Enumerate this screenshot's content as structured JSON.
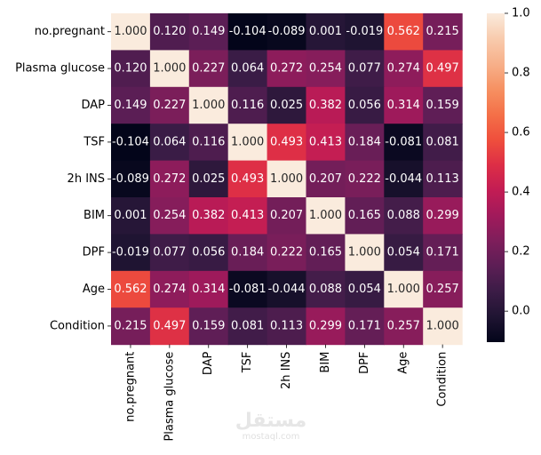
{
  "chart_data": {
    "type": "heatmap",
    "title": "",
    "xlabel": "",
    "ylabel": "",
    "row_labels": [
      "no.pregnant",
      "Plasma glucose",
      "DAP",
      "TSF",
      "2h INS",
      "BIM",
      "DPF",
      "Age",
      "Condition"
    ],
    "col_labels": [
      "no.pregnant",
      "Plasma glucose",
      "DAP",
      "TSF",
      "2h INS",
      "BIM",
      "DPF",
      "Age",
      "Condition"
    ],
    "values": [
      [
        1.0,
        0.12,
        0.149,
        -0.104,
        -0.089,
        0.001,
        -0.019,
        0.562,
        0.215
      ],
      [
        0.12,
        1.0,
        0.227,
        0.064,
        0.272,
        0.254,
        0.077,
        0.274,
        0.497
      ],
      [
        0.149,
        0.227,
        1.0,
        0.116,
        0.025,
        0.382,
        0.056,
        0.314,
        0.159
      ],
      [
        -0.104,
        0.064,
        0.116,
        1.0,
        0.493,
        0.413,
        0.184,
        -0.081,
        0.081
      ],
      [
        -0.089,
        0.272,
        0.025,
        0.493,
        1.0,
        0.207,
        0.222,
        -0.044,
        0.113
      ],
      [
        0.001,
        0.254,
        0.382,
        0.413,
        0.207,
        1.0,
        0.165,
        0.088,
        0.299
      ],
      [
        -0.019,
        0.077,
        0.056,
        0.184,
        0.222,
        0.165,
        1.0,
        0.054,
        0.171
      ],
      [
        0.562,
        0.274,
        0.314,
        -0.081,
        -0.044,
        0.088,
        0.054,
        1.0,
        0.257
      ],
      [
        0.215,
        0.497,
        0.159,
        0.081,
        0.113,
        0.299,
        0.171,
        0.257,
        1.0
      ]
    ],
    "annotations": [
      [
        "1.000",
        "0.120",
        "0.149",
        "-0.104",
        "-0.089",
        "0.001",
        "-0.019",
        "0.562",
        "0.215"
      ],
      [
        "0.120",
        "1.000",
        "0.227",
        "0.064",
        "0.272",
        "0.254",
        "0.077",
        "0.274",
        "0.497"
      ],
      [
        "0.149",
        "0.227",
        "1.000",
        "0.116",
        "0.025",
        "0.382",
        "0.056",
        "0.314",
        "0.159"
      ],
      [
        "-0.104",
        "0.064",
        "0.116",
        "1.000",
        "0.493",
        "0.413",
        "0.184",
        "-0.081",
        "0.081"
      ],
      [
        "-0.089",
        "0.272",
        "0.025",
        "0.493",
        "1.000",
        "0.207",
        "0.222",
        "-0.044",
        "0.113"
      ],
      [
        "0.001",
        "0.254",
        "0.382",
        "0.413",
        "0.207",
        "1.000",
        "0.165",
        "0.088",
        "0.299"
      ],
      [
        "-0.019",
        "0.077",
        "0.056",
        "0.184",
        "0.222",
        "0.165",
        "1.000",
        "0.054",
        "0.171"
      ],
      [
        "0.562",
        "0.274",
        "0.314",
        "-0.081",
        "-0.044",
        "0.088",
        "0.054",
        "1.000",
        "0.257"
      ],
      [
        "0.215",
        "0.497",
        "0.159",
        "0.081",
        "0.113",
        "0.299",
        "0.171",
        "0.257",
        "1.000"
      ]
    ],
    "colormap": "rocket",
    "colormap_stops": [
      "#03051a",
      "#1f1432",
      "#3b1c46",
      "#5c1e55",
      "#7e1e5b",
      "#a11a5b",
      "#c21c54",
      "#dd2e46",
      "#ef4f3c",
      "#f47048",
      "#f69162",
      "#f7b08a",
      "#f8cbad",
      "#faebdd"
    ],
    "vmin": -0.104,
    "vmax": 1.0,
    "colorbar_ticks": [
      0.0,
      0.2,
      0.4,
      0.6,
      0.8,
      1.0
    ],
    "colorbar_tick_labels": [
      "0.0",
      "0.2",
      "0.4",
      "0.6",
      "0.8",
      "1.0"
    ],
    "text_color_dark": "#262626",
    "text_color_light": "#ffffff"
  },
  "watermark": {
    "arabic": "مستقل",
    "latin": "mostaql.com"
  }
}
